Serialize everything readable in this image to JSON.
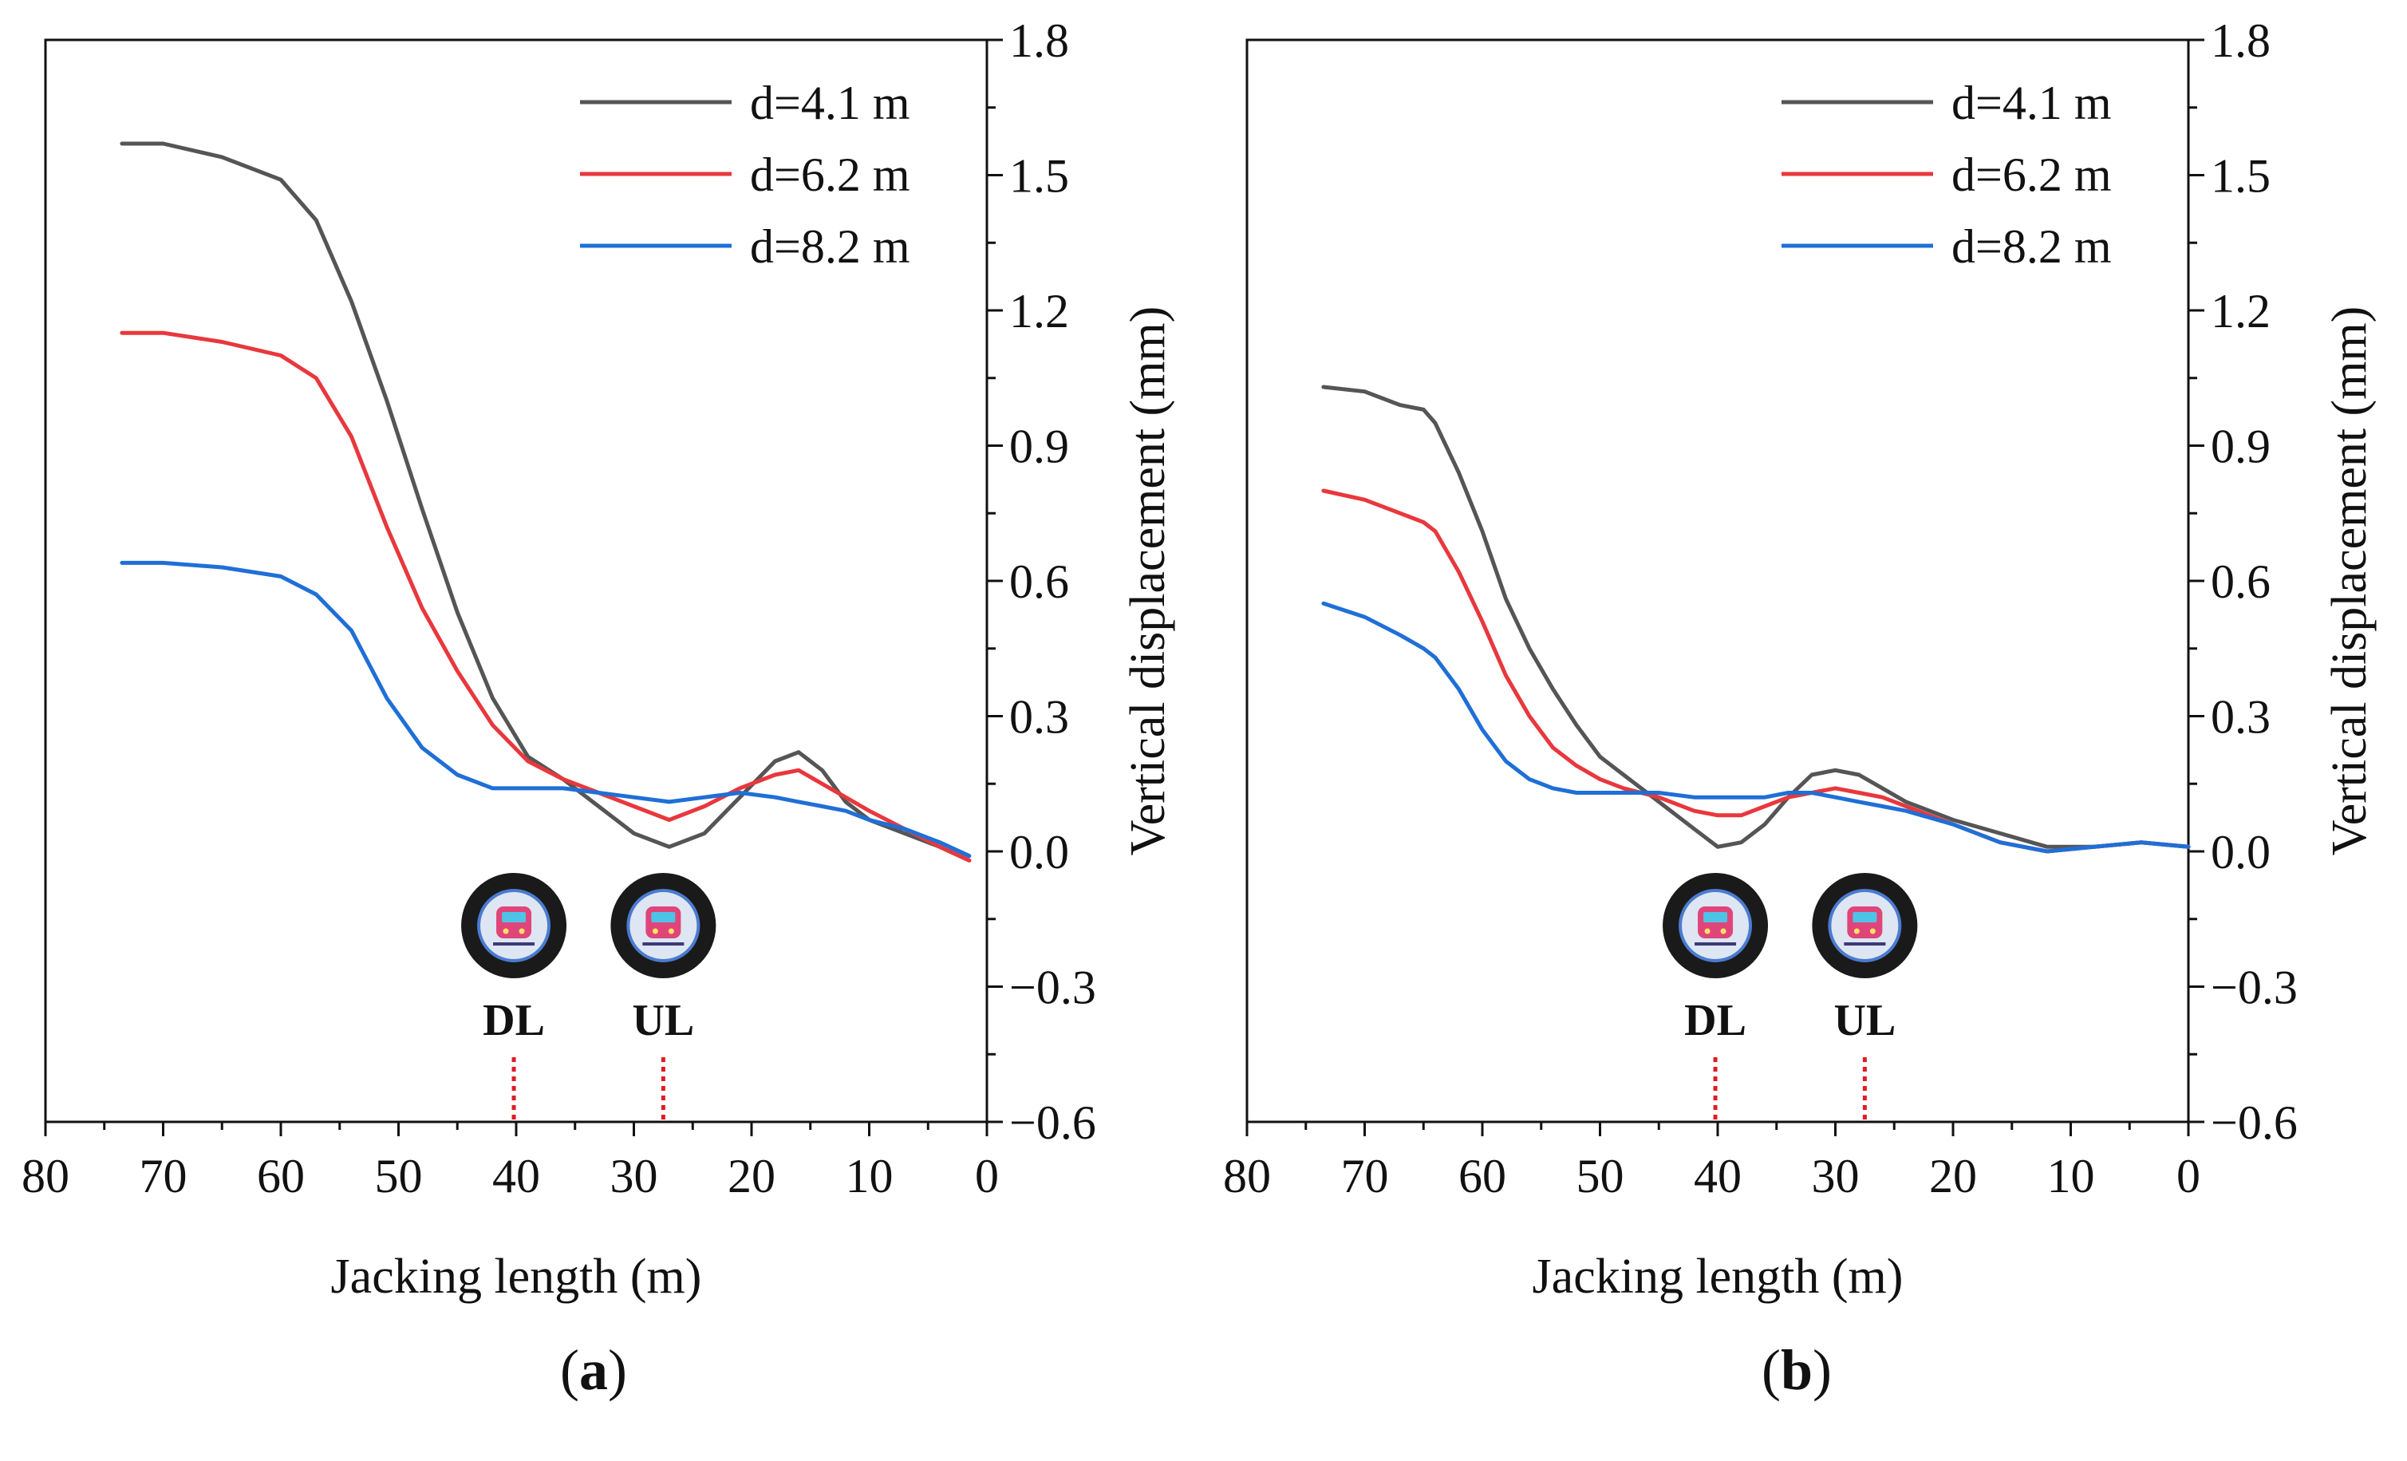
{
  "chart_data": [
    {
      "type": "line",
      "panel_label": "(a)",
      "xlabel": "Jacking length (m)",
      "ylabel": "Vertical displacement (mm)",
      "xlim": [
        80,
        0
      ],
      "ylim": [
        -0.6,
        1.8
      ],
      "x_ticks": [
        "80",
        "70",
        "60",
        "50",
        "40",
        "30",
        "20",
        "10",
        "0"
      ],
      "y_ticks": [
        "−0.6",
        "−0.3",
        "0.0",
        "0.3",
        "0.6",
        "0.9",
        "1.2",
        "1.5",
        "1.8"
      ],
      "legend_position": "top-right",
      "series": [
        {
          "name": "d=4.1 m",
          "color": "#555555",
          "x": [
            73.5,
            70,
            65,
            60,
            57,
            54,
            51,
            48,
            45,
            42,
            39,
            36,
            33,
            30,
            27,
            24,
            21,
            18,
            16,
            14,
            12,
            10,
            7,
            4,
            1.5
          ],
          "y": [
            1.57,
            1.57,
            1.54,
            1.49,
            1.4,
            1.22,
            1.0,
            0.76,
            0.53,
            0.34,
            0.21,
            0.16,
            0.1,
            0.04,
            0.01,
            0.04,
            0.12,
            0.2,
            0.22,
            0.18,
            0.11,
            0.07,
            0.04,
            0.01,
            -0.02
          ]
        },
        {
          "name": "d=6.2 m",
          "color": "#e8383d",
          "x": [
            73.5,
            70,
            65,
            60,
            57,
            54,
            51,
            48,
            45,
            42,
            39,
            36,
            33,
            30,
            27,
            24,
            21,
            18,
            16,
            14,
            12,
            10,
            7,
            4,
            1.5
          ],
          "y": [
            1.15,
            1.15,
            1.13,
            1.1,
            1.05,
            0.92,
            0.72,
            0.54,
            0.4,
            0.28,
            0.2,
            0.16,
            0.13,
            0.1,
            0.07,
            0.1,
            0.14,
            0.17,
            0.18,
            0.15,
            0.12,
            0.09,
            0.05,
            0.01,
            -0.02
          ]
        },
        {
          "name": "d=8.2 m",
          "color": "#1f6fd6",
          "x": [
            73.5,
            70,
            65,
            60,
            57,
            54,
            51,
            48,
            45,
            42,
            39,
            36,
            33,
            30,
            27,
            24,
            21,
            18,
            16,
            14,
            12,
            10,
            7,
            4,
            1.5
          ],
          "y": [
            0.64,
            0.64,
            0.63,
            0.61,
            0.57,
            0.49,
            0.34,
            0.23,
            0.17,
            0.14,
            0.14,
            0.14,
            0.13,
            0.12,
            0.11,
            0.12,
            0.13,
            0.12,
            0.11,
            0.1,
            0.09,
            0.07,
            0.05,
            0.02,
            -0.01
          ]
        }
      ],
      "markers": [
        {
          "label": "DL",
          "x": 40.2,
          "icon": "train-icon"
        },
        {
          "label": "UL",
          "x": 27.5,
          "icon": "train-icon"
        }
      ]
    },
    {
      "type": "line",
      "panel_label": "(b)",
      "xlabel": "Jacking length (m)",
      "ylabel": "Vertical displacement (mm)",
      "xlim": [
        80,
        0
      ],
      "ylim": [
        -0.6,
        1.8
      ],
      "x_ticks": [
        "80",
        "70",
        "60",
        "50",
        "40",
        "30",
        "20",
        "10",
        "0"
      ],
      "y_ticks": [
        "−0.6",
        "−0.3",
        "0.0",
        "0.3",
        "0.6",
        "0.9",
        "1.2",
        "1.5",
        "1.8"
      ],
      "legend_position": "top-right",
      "series": [
        {
          "name": "d=4.1 m",
          "color": "#555555",
          "x": [
            73.5,
            70,
            67,
            65,
            64,
            62,
            60,
            58,
            56,
            54,
            52,
            50,
            48,
            45,
            42,
            40,
            38,
            36,
            34,
            32,
            30,
            28,
            26,
            24,
            20,
            16,
            12,
            8,
            4,
            0
          ],
          "y": [
            1.03,
            1.02,
            0.99,
            0.98,
            0.95,
            0.84,
            0.71,
            0.56,
            0.45,
            0.36,
            0.28,
            0.21,
            0.17,
            0.11,
            0.05,
            0.01,
            0.02,
            0.06,
            0.12,
            0.17,
            0.18,
            0.17,
            0.14,
            0.11,
            0.07,
            0.04,
            0.01,
            0.01,
            0.02,
            0.01
          ]
        },
        {
          "name": "d=6.2 m",
          "color": "#e8383d",
          "x": [
            73.5,
            70,
            67,
            65,
            64,
            62,
            60,
            58,
            56,
            54,
            52,
            50,
            48,
            45,
            42,
            40,
            38,
            36,
            34,
            32,
            30,
            28,
            26,
            24,
            20,
            16,
            12,
            8,
            4,
            0
          ],
          "y": [
            0.8,
            0.78,
            0.75,
            0.73,
            0.71,
            0.62,
            0.51,
            0.39,
            0.3,
            0.23,
            0.19,
            0.16,
            0.14,
            0.12,
            0.09,
            0.08,
            0.08,
            0.1,
            0.12,
            0.13,
            0.14,
            0.13,
            0.12,
            0.1,
            0.06,
            0.02,
            0.0,
            0.01,
            0.02,
            0.01
          ]
        },
        {
          "name": "d=8.2 m",
          "color": "#1f6fd6",
          "x": [
            73.5,
            70,
            67,
            65,
            64,
            62,
            60,
            58,
            56,
            54,
            52,
            50,
            48,
            45,
            42,
            40,
            38,
            36,
            34,
            32,
            30,
            28,
            26,
            24,
            20,
            16,
            12,
            8,
            4,
            0
          ],
          "y": [
            0.55,
            0.52,
            0.48,
            0.45,
            0.43,
            0.36,
            0.27,
            0.2,
            0.16,
            0.14,
            0.13,
            0.13,
            0.13,
            0.13,
            0.12,
            0.12,
            0.12,
            0.12,
            0.13,
            0.13,
            0.12,
            0.11,
            0.1,
            0.09,
            0.06,
            0.02,
            0.0,
            0.01,
            0.02,
            0.01
          ]
        }
      ],
      "markers": [
        {
          "label": "DL",
          "x": 40.2,
          "icon": "train-icon"
        },
        {
          "label": "UL",
          "x": 27.5,
          "icon": "train-icon"
        }
      ]
    }
  ]
}
